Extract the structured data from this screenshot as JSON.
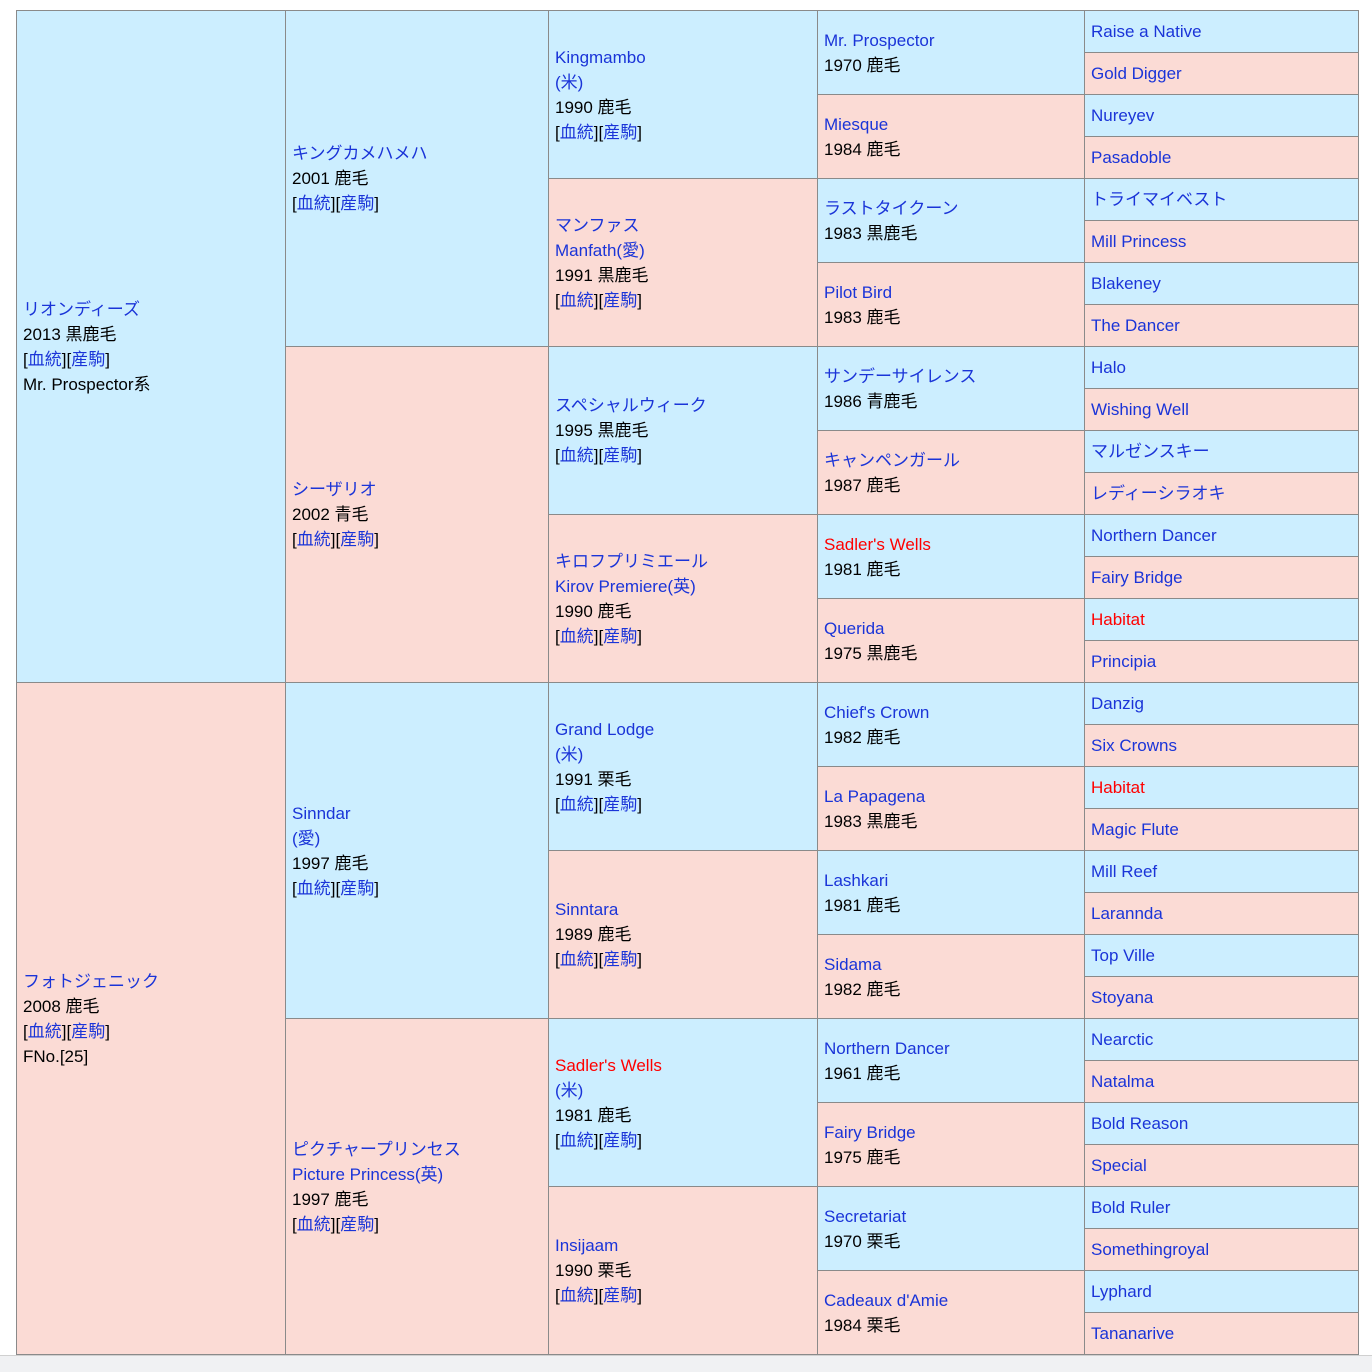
{
  "labels": {
    "lb": "[",
    "rb": "]",
    "blood": "血統",
    "progeny": "産駒"
  },
  "colors": {
    "male_bg": "#cceeff",
    "female_bg": "#fbdbd5",
    "link": "#1a34d8",
    "duplicate": "#ff0000",
    "border": "#8a8a8a",
    "page_bg": "#ffffff",
    "bottom_bar": "#f0f1f3"
  },
  "gen1": [
    {
      "name": "リオンディーズ",
      "info": "2013 黒鹿毛",
      "extra": "Mr. Prospector系"
    },
    {
      "name": "フォトジェニック",
      "info": "2008 鹿毛",
      "extra": "FNo.[25]"
    }
  ],
  "gen2": [
    {
      "name": "キングカメハメハ",
      "info": "2001 鹿毛"
    },
    {
      "name": "シーザリオ",
      "info": "2002 青毛"
    },
    {
      "name": "Sinndar",
      "sub": "(愛)",
      "info": "1997 鹿毛"
    },
    {
      "name": "ピクチャープリンセス",
      "sub": "Picture Princess(英)",
      "info": "1997 鹿毛"
    }
  ],
  "gen3": [
    {
      "name": "Kingmambo",
      "sub": "(米)",
      "info": "1990 鹿毛"
    },
    {
      "name": "マンファス",
      "sub": "Manfath(愛)",
      "info": "1991 黒鹿毛"
    },
    {
      "name": "スペシャルウィーク",
      "info": "1995 黒鹿毛"
    },
    {
      "name": "キロフプリミエール",
      "sub": "Kirov Premiere(英)",
      "info": "1990 鹿毛"
    },
    {
      "name": "Grand Lodge",
      "sub": "(米)",
      "info": "1991 栗毛"
    },
    {
      "name": "Sinntara",
      "info": "1989 鹿毛"
    },
    {
      "name": "Sadler's Wells",
      "sub": "(米)",
      "info": "1981 鹿毛",
      "dup": true
    },
    {
      "name": "Insijaam",
      "info": "1990 栗毛"
    }
  ],
  "gen4": [
    {
      "name": "Mr. Prospector",
      "info": "1970 鹿毛"
    },
    {
      "name": "Miesque",
      "info": "1984 鹿毛"
    },
    {
      "name": "ラストタイクーン",
      "info": "1983 黒鹿毛"
    },
    {
      "name": "Pilot Bird",
      "info": "1983 鹿毛"
    },
    {
      "name": "サンデーサイレンス",
      "info": "1986 青鹿毛"
    },
    {
      "name": "キャンペンガール",
      "info": "1987 鹿毛"
    },
    {
      "name": "Sadler's Wells",
      "info": "1981 鹿毛",
      "dup": true
    },
    {
      "name": "Querida",
      "info": "1975 黒鹿毛"
    },
    {
      "name": "Chief's Crown",
      "info": "1982 鹿毛"
    },
    {
      "name": "La Papagena",
      "info": "1983 黒鹿毛"
    },
    {
      "name": "Lashkari",
      "info": "1981 鹿毛"
    },
    {
      "name": "Sidama",
      "info": "1982 鹿毛"
    },
    {
      "name": "Northern Dancer",
      "info": "1961 鹿毛"
    },
    {
      "name": "Fairy Bridge",
      "info": "1975 鹿毛"
    },
    {
      "name": "Secretariat",
      "info": "1970 栗毛"
    },
    {
      "name": "Cadeaux d'Amie",
      "info": "1984 栗毛"
    }
  ],
  "gen5": [
    {
      "name": "Raise a Native"
    },
    {
      "name": "Gold Digger"
    },
    {
      "name": "Nureyev"
    },
    {
      "name": "Pasadoble"
    },
    {
      "name": "トライマイベスト"
    },
    {
      "name": "Mill Princess"
    },
    {
      "name": "Blakeney"
    },
    {
      "name": "The Dancer"
    },
    {
      "name": "Halo"
    },
    {
      "name": "Wishing Well"
    },
    {
      "name": "マルゼンスキー"
    },
    {
      "name": "レディーシラオキ"
    },
    {
      "name": "Northern Dancer"
    },
    {
      "name": "Fairy Bridge"
    },
    {
      "name": "Habitat",
      "dup": true
    },
    {
      "name": "Principia"
    },
    {
      "name": "Danzig"
    },
    {
      "name": "Six Crowns"
    },
    {
      "name": "Habitat",
      "dup": true
    },
    {
      "name": "Magic Flute"
    },
    {
      "name": "Mill Reef"
    },
    {
      "name": "Larannda"
    },
    {
      "name": "Top Ville"
    },
    {
      "name": "Stoyana"
    },
    {
      "name": "Nearctic"
    },
    {
      "name": "Natalma"
    },
    {
      "name": "Bold Reason"
    },
    {
      "name": "Special"
    },
    {
      "name": "Bold Ruler"
    },
    {
      "name": "Somethingroyal"
    },
    {
      "name": "Lyphard"
    },
    {
      "name": "Tananarive"
    }
  ]
}
